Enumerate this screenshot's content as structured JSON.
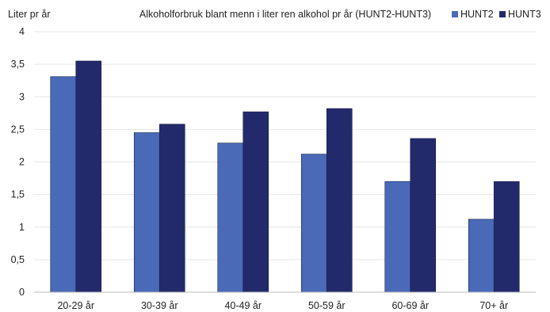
{
  "chart_data": {
    "type": "bar",
    "title": "Alkoholforbruk blant menn i liter ren alkohol pr år (HUNT2-HUNT3)",
    "ylabel": "Liter pr år",
    "xlabel": "",
    "categories": [
      "20-29 år",
      "30-39 år",
      "40-49 år",
      "50-59 år",
      "60-69 år",
      "70+ år"
    ],
    "series": [
      {
        "name": "HUNT2",
        "color": "#4a6ab8",
        "values": [
          3.31,
          2.45,
          2.29,
          2.12,
          1.7,
          1.12
        ]
      },
      {
        "name": "HUNT3",
        "color": "#232a6c",
        "values": [
          3.55,
          2.58,
          2.77,
          2.82,
          2.36,
          1.7
        ]
      }
    ],
    "ylim": [
      0,
      4
    ],
    "yticks": [
      "0",
      "0,5",
      "1",
      "1,5",
      "2",
      "2,5",
      "3",
      "3,5",
      "4"
    ],
    "grid": true,
    "legend": "top-right"
  }
}
